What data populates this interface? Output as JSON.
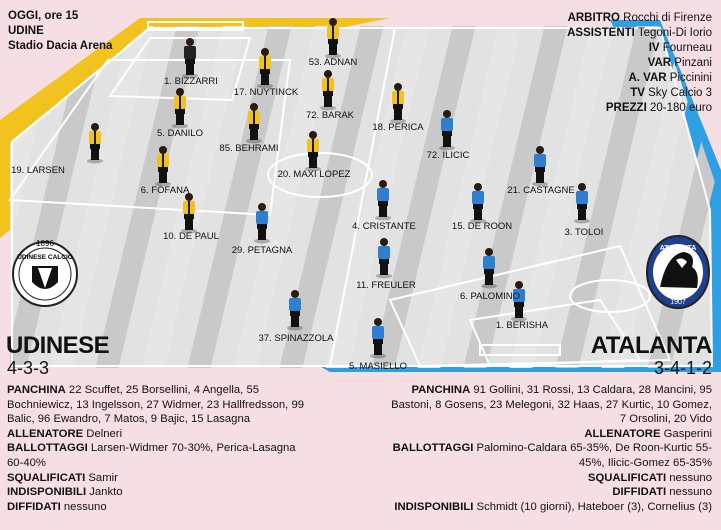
{
  "match": {
    "day": "OGGI, ore 15",
    "city": "UDINE",
    "stadium": "Stadio Dacia Arena"
  },
  "officials": [
    {
      "label": "ARBITRO",
      "value": "Rocchi di Firenze"
    },
    {
      "label": "ASSISTENTI",
      "value": "Tegoni-Di Iorio"
    },
    {
      "label": "IV",
      "value": "Fourneau"
    },
    {
      "label": "VAR",
      "value": "Pinzani"
    },
    {
      "label": "A. VAR",
      "value": "Piccinini"
    },
    {
      "label": "TV",
      "value": "Sky Calcio 3"
    },
    {
      "label": "PREZZI",
      "value": "20-180 euro"
    }
  ],
  "colors": {
    "home_shirt": "#f2c21b",
    "home_stripe": "#1a1a1a",
    "away_shirt": "#2f7fd0",
    "home_band": "#f2c31e",
    "away_band": "#2d9fe2",
    "pitch_light": "#e6e6e6",
    "pitch_dark": "#c9c9c9"
  },
  "home": {
    "name": "UDINESE",
    "formation": "4-3-3",
    "logo_year": "1896",
    "logo_text": "UDINESE CALCIO",
    "players": [
      {
        "label": "1. BIZZARRI"
      },
      {
        "label": "17. NUYTINCK"
      },
      {
        "label": "53. ADNAN"
      },
      {
        "label": "5. DANILO"
      },
      {
        "label": "72. BARAK"
      },
      {
        "label": "19. LARSEN"
      },
      {
        "label": "85. BEHRAMI"
      },
      {
        "label": "18. PERICA"
      },
      {
        "label": "6. FOFANA"
      },
      {
        "label": "20. MAXI LOPEZ"
      },
      {
        "label": "10. DE PAUL"
      }
    ],
    "info": [
      {
        "label": "PANCHINA",
        "value": "22 Scuffet, 25 Borsellini, 4 Angella, 55 Bochniewicz, 13 Ingelsson, 27 Widmer, 23 Hallfredsson, 99 Balic, 96 Ewandro, 7 Matos, 9 Bajic, 15 Lasagna"
      },
      {
        "label": "ALLENATORE",
        "value": "Delneri"
      },
      {
        "label": "BALLOTTAGGI",
        "value": "Larsen-Widmer 70-30%, Perica-Lasagna 60-40%"
      },
      {
        "label": "SQUALIFICATI",
        "value": "Samir"
      },
      {
        "label": "INDISPONIBILI",
        "value": "Jankto"
      },
      {
        "label": "DIFFIDATI",
        "value": "nessuno"
      }
    ]
  },
  "away": {
    "name": "ATALANTA",
    "formation": "3-4-1-2",
    "logo_text": "ATALANTA",
    "logo_year": "1907",
    "players": [
      {
        "label": "72. ILICIC"
      },
      {
        "label": "21. CASTAGNE"
      },
      {
        "label": "4. CRISTANTE"
      },
      {
        "label": "15. DE ROON"
      },
      {
        "label": "3. TOLOI"
      },
      {
        "label": "29. PETAGNA"
      },
      {
        "label": "11. FREULER"
      },
      {
        "label": "6. PALOMINO"
      },
      {
        "label": "1. BERISHA"
      },
      {
        "label": "37. SPINAZZOLA"
      },
      {
        "label": "5. MASIELLO"
      }
    ],
    "info": [
      {
        "label": "PANCHINA",
        "value": "91 Gollini, 31 Rossi, 13 Caldara, 28 Mancini, 95 Bastoni, 8 Gosens, 23 Melegoni, 32 Haas, 27 Kurtic, 10 Gomez, 7 Orsolini, 20 Vido"
      },
      {
        "label": "ALLENATORE",
        "value": "Gasperini"
      },
      {
        "label": "BALLOTTAGGI",
        "value": "Palomino-Caldara 65-35%, De Roon-Kurtic 55-45%, Ilicic-Gomez 65-35%"
      },
      {
        "label": "SQUALIFICATI",
        "value": "nessuno"
      },
      {
        "label": "DIFFIDATI",
        "value": "nessuno"
      },
      {
        "label": "INDISPONIBILI",
        "value": "Schmidt (10 giorni), Hateboer (3), Cornelius (3)"
      }
    ]
  }
}
